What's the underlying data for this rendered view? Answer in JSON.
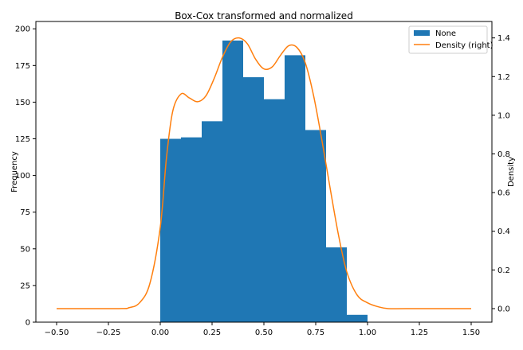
{
  "chart_data": {
    "type": "bar",
    "title": "Box-Cox transformed and normalized",
    "xlabel": "",
    "ylabel": "Frequency",
    "y2label": "Density",
    "xlim": [
      -0.6,
      1.6
    ],
    "ylim": [
      0,
      205
    ],
    "y2lim": [
      -0.07,
      1.485
    ],
    "x_ticks": [
      -0.5,
      -0.25,
      0.0,
      0.25,
      0.5,
      0.75,
      1.0,
      1.25,
      1.5
    ],
    "x_tick_labels": [
      "−0.50",
      "−0.25",
      "0.00",
      "0.25",
      "0.50",
      "0.75",
      "1.00",
      "1.25",
      "1.50"
    ],
    "y_ticks": [
      0,
      25,
      50,
      75,
      100,
      125,
      150,
      175,
      200
    ],
    "y_tick_labels": [
      "0",
      "25",
      "50",
      "75",
      "100",
      "125",
      "150",
      "175",
      "200"
    ],
    "y2_ticks": [
      0.0,
      0.2,
      0.4,
      0.6,
      0.8,
      1.0,
      1.2,
      1.4
    ],
    "y2_tick_labels": [
      "0.0",
      "0.2",
      "0.4",
      "0.6",
      "0.8",
      "1.0",
      "1.2",
      "1.4"
    ],
    "grid": false,
    "legend_position": "top-right",
    "histogram": {
      "name": "None",
      "color": "#1f77b4",
      "bin_edges": [
        0.0,
        0.1,
        0.2,
        0.3,
        0.4,
        0.5,
        0.6,
        0.7,
        0.8,
        0.9,
        1.0
      ],
      "counts": [
        125,
        126,
        137,
        192,
        167,
        152,
        182,
        131,
        51,
        5
      ]
    },
    "density": {
      "name": "Density (right)",
      "color": "#ff7f0e",
      "x": [
        -0.5,
        -0.2,
        -0.15,
        -0.1,
        -0.05,
        0.0,
        0.03,
        0.06,
        0.1,
        0.14,
        0.18,
        0.22,
        0.26,
        0.3,
        0.34,
        0.38,
        0.42,
        0.46,
        0.5,
        0.54,
        0.58,
        0.62,
        0.66,
        0.7,
        0.74,
        0.78,
        0.82,
        0.86,
        0.9,
        0.95,
        1.0,
        1.05,
        1.1,
        1.2,
        1.5
      ],
      "y": [
        0.0,
        0.0,
        0.005,
        0.03,
        0.13,
        0.42,
        0.78,
        1.02,
        1.11,
        1.09,
        1.07,
        1.1,
        1.19,
        1.3,
        1.38,
        1.4,
        1.37,
        1.29,
        1.24,
        1.25,
        1.31,
        1.36,
        1.35,
        1.27,
        1.1,
        0.87,
        0.62,
        0.38,
        0.19,
        0.07,
        0.03,
        0.01,
        0.0,
        0.0,
        0.0
      ]
    }
  }
}
